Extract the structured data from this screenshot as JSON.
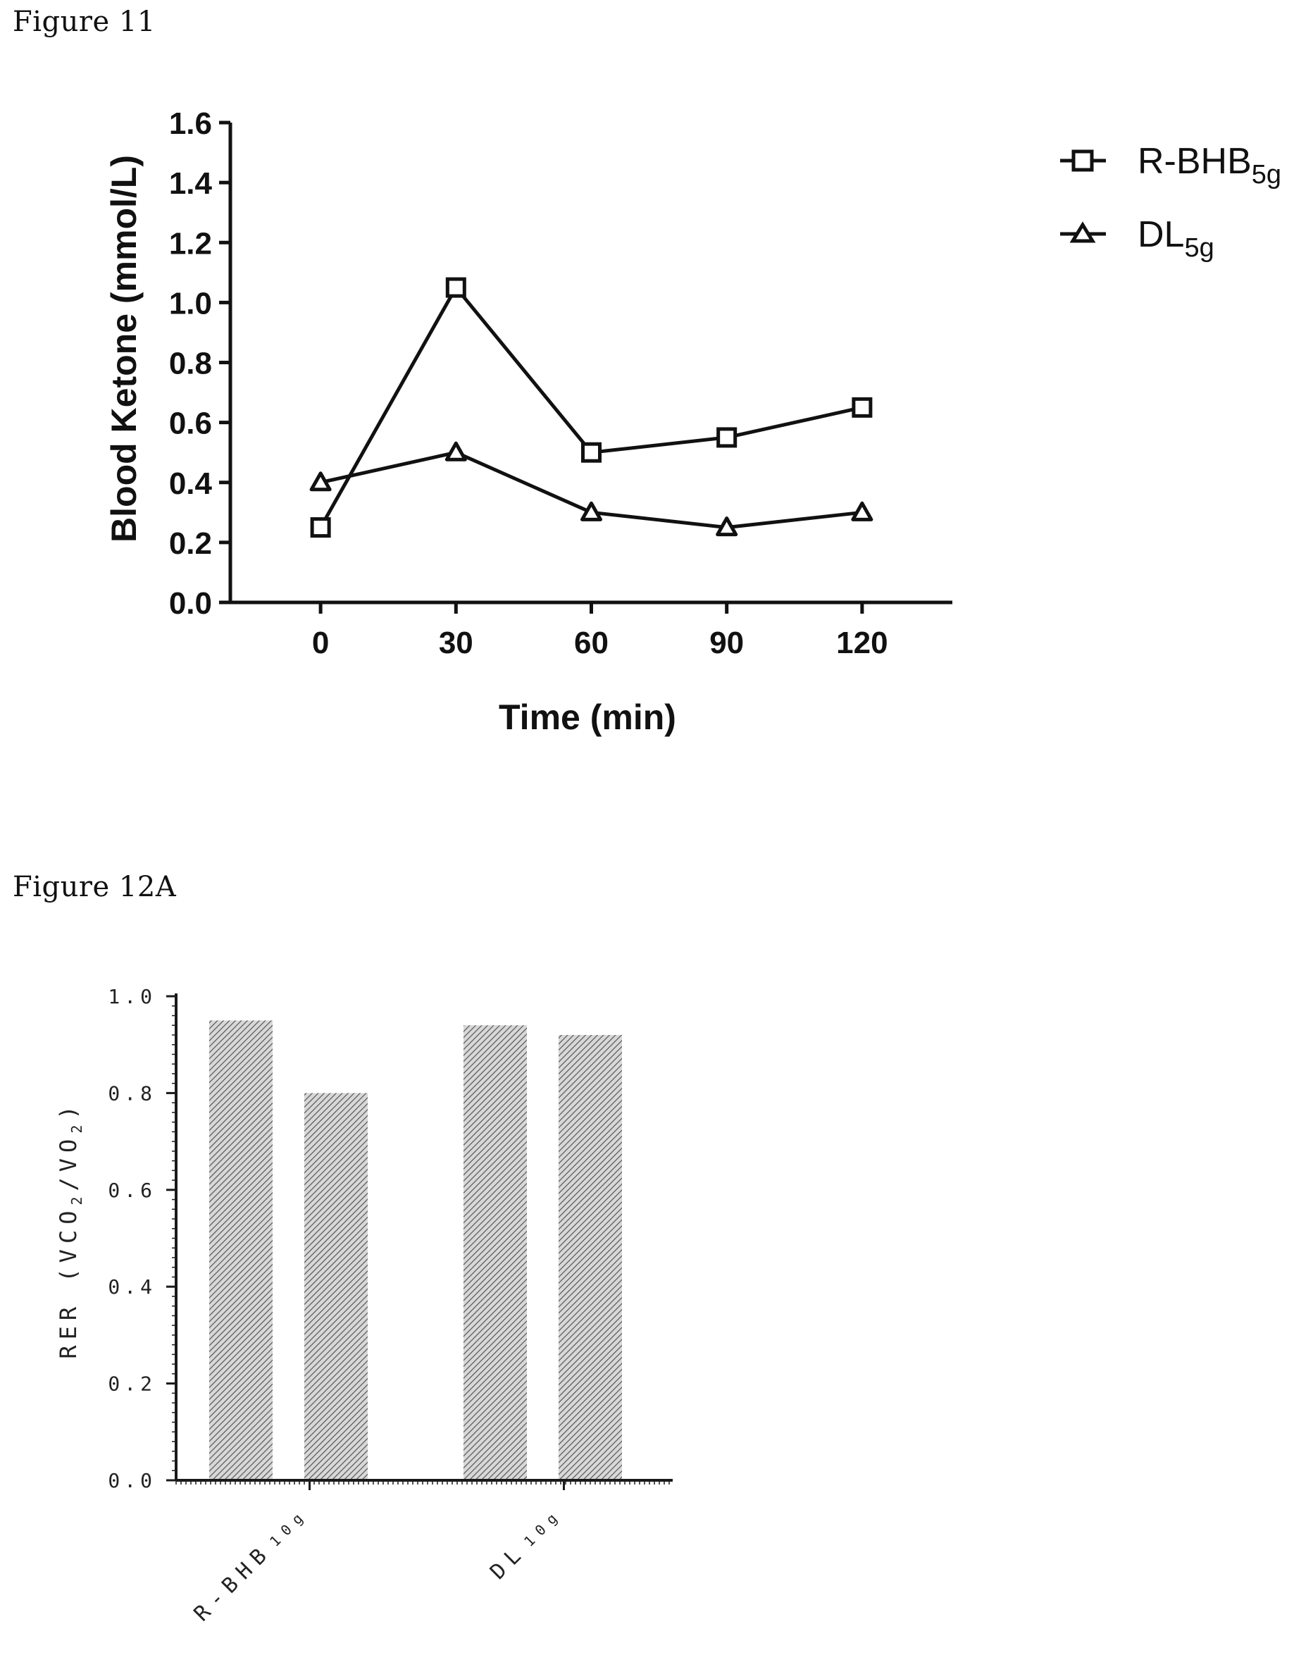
{
  "figures": {
    "fig11_label": "Figure 11",
    "fig12a_label": "Figure 12A"
  },
  "chart_data": [
    {
      "type": "line",
      "ylabel": "Blood Ketone (mmol/L)",
      "xlabel": "Time (min)",
      "x": [
        0,
        30,
        60,
        90,
        120
      ],
      "x_tick_labels": [
        "0",
        "30",
        "60",
        "90",
        "120"
      ],
      "y_tick_labels": [
        "0.0",
        "0.2",
        "0.4",
        "0.6",
        "0.8",
        "1.0",
        "1.2",
        "1.4",
        "1.6"
      ],
      "ylim": [
        0,
        1.6
      ],
      "xlim": [
        -20,
        140
      ],
      "legend_position": "top-right",
      "series": [
        {
          "name": "R-BHB",
          "name_subscript": "5g",
          "marker": "square",
          "values": [
            0.25,
            1.05,
            0.5,
            0.55,
            0.65
          ]
        },
        {
          "name": "DL",
          "name_subscript": "5g",
          "marker": "triangle",
          "values": [
            0.4,
            0.5,
            0.3,
            0.25,
            0.3
          ]
        }
      ],
      "colors": {
        "line": "#111111",
        "marker_fill": "#ffffff"
      }
    },
    {
      "type": "bar",
      "ylabel": "RER (VCO2/VO2)",
      "ylabel_parts": [
        "RER (VCO",
        "2",
        "/VO",
        "2",
        ")"
      ],
      "ylim": [
        0,
        1.0
      ],
      "y_tick_labels": [
        "0.0",
        "0.2",
        "0.4",
        "0.6",
        "0.8",
        "1.0"
      ],
      "groups": [
        {
          "label": "R-BHB",
          "label_subscript": "10g",
          "values": [
            0.95,
            0.8
          ]
        },
        {
          "label": "DL",
          "label_subscript": "10g",
          "values": [
            0.94,
            0.92
          ]
        }
      ],
      "colors": {
        "bar_hatch": "#555555",
        "bar_bg": "#cfcfcf"
      }
    }
  ]
}
